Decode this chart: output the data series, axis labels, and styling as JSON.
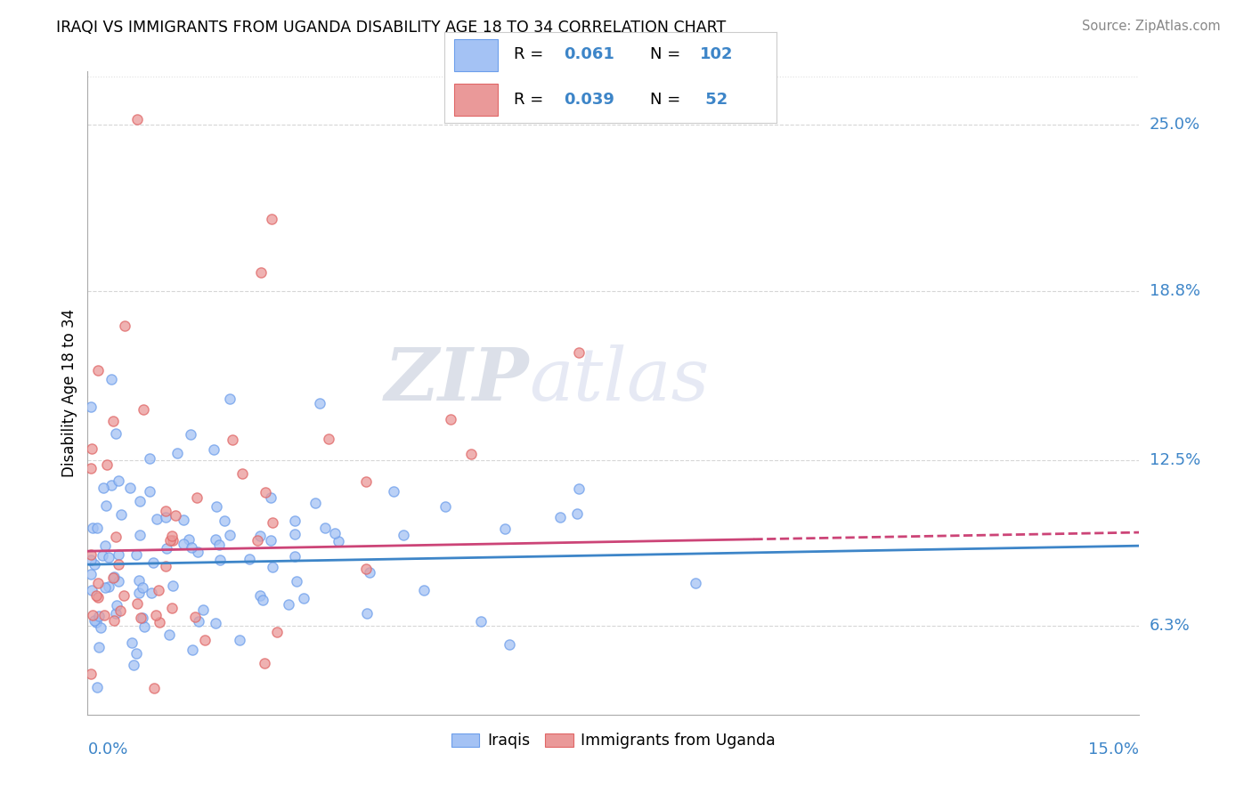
{
  "title": "IRAQI VS IMMIGRANTS FROM UGANDA DISABILITY AGE 18 TO 34 CORRELATION CHART",
  "source": "Source: ZipAtlas.com",
  "ylabel": "Disability Age 18 to 34",
  "xmin": 0.0,
  "xmax": 0.15,
  "ymin": 0.03,
  "ymax": 0.27,
  "ytick_values": [
    0.063,
    0.125,
    0.188,
    0.25
  ],
  "ytick_labels": [
    "6.3%",
    "12.5%",
    "18.8%",
    "25.0%"
  ],
  "watermark_zip": "ZIP",
  "watermark_atlas": "atlas",
  "legend_iraqi_R": "0.061",
  "legend_iraqi_N": "102",
  "legend_uganda_R": "0.039",
  "legend_uganda_N": "52",
  "iraqi_color": "#a4c2f4",
  "iraqi_edge_color": "#6d9eeb",
  "uganda_color": "#ea9999",
  "uganda_edge_color": "#e06666",
  "iraqi_line_color": "#3d85c8",
  "uganda_line_color": "#cc4477",
  "grid_color": "#cccccc",
  "background_color": "#ffffff",
  "text_blue": "#3d85c8",
  "text_red": "#cc0000"
}
